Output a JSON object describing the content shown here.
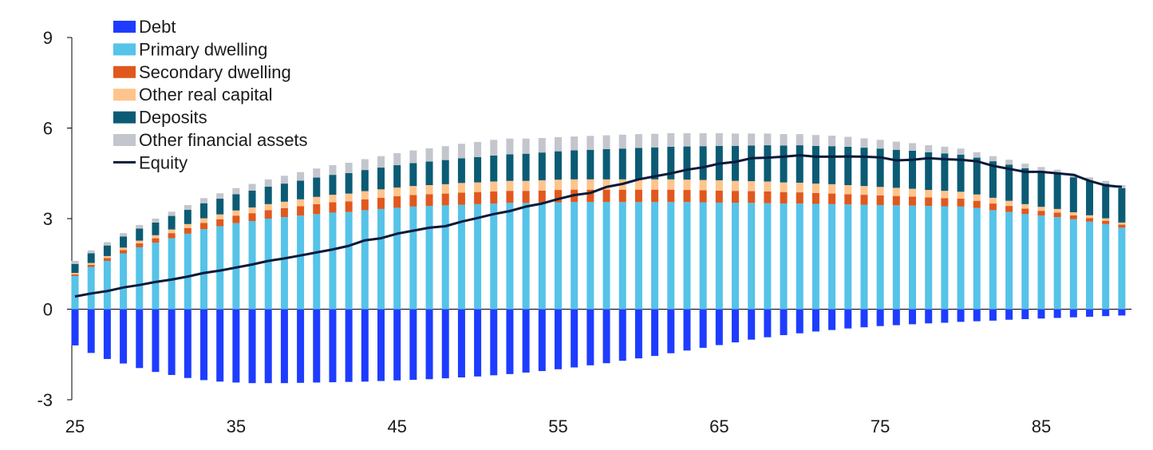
{
  "chart_data": {
    "type": "bar",
    "stacked": true,
    "title": "",
    "xlabel": "",
    "ylabel": "",
    "x": [
      25,
      26,
      27,
      28,
      29,
      30,
      31,
      32,
      33,
      34,
      35,
      36,
      37,
      38,
      39,
      40,
      41,
      42,
      43,
      44,
      45,
      46,
      47,
      48,
      49,
      50,
      51,
      52,
      53,
      54,
      55,
      56,
      57,
      58,
      59,
      60,
      61,
      62,
      63,
      64,
      65,
      66,
      67,
      68,
      69,
      70,
      71,
      72,
      73,
      74,
      75,
      76,
      77,
      78,
      79,
      80,
      81,
      82,
      83,
      84,
      85,
      86,
      87,
      88,
      89,
      90
    ],
    "xticks": [
      "25",
      "35",
      "45",
      "55",
      "65",
      "75",
      "85"
    ],
    "yticks": [
      "-3",
      "0",
      "3",
      "6",
      "9"
    ],
    "ylim": [
      -3,
      9
    ],
    "xlim": [
      24.8,
      90.6
    ],
    "legend_position": "top-left",
    "series": [
      {
        "name": "Debt",
        "color": "#1e3cff",
        "values": [
          -1.2,
          -1.45,
          -1.65,
          -1.8,
          -1.95,
          -2.08,
          -2.18,
          -2.28,
          -2.35,
          -2.4,
          -2.43,
          -2.45,
          -2.45,
          -2.45,
          -2.44,
          -2.43,
          -2.42,
          -2.41,
          -2.4,
          -2.38,
          -2.36,
          -2.34,
          -2.32,
          -2.29,
          -2.26,
          -2.23,
          -2.19,
          -2.15,
          -2.1,
          -2.05,
          -1.99,
          -1.93,
          -1.86,
          -1.79,
          -1.71,
          -1.63,
          -1.55,
          -1.46,
          -1.37,
          -1.28,
          -1.19,
          -1.1,
          -1.01,
          -0.93,
          -0.86,
          -0.8,
          -0.74,
          -0.69,
          -0.64,
          -0.6,
          -0.56,
          -0.53,
          -0.5,
          -0.47,
          -0.45,
          -0.42,
          -0.4,
          -0.38,
          -0.35,
          -0.33,
          -0.31,
          -0.29,
          -0.27,
          -0.25,
          -0.23,
          -0.21
        ]
      },
      {
        "name": "Primary dwelling",
        "color": "#56c3e8",
        "values": [
          1.1,
          1.4,
          1.6,
          1.85,
          2.05,
          2.2,
          2.35,
          2.5,
          2.65,
          2.75,
          2.85,
          2.92,
          3.0,
          3.05,
          3.1,
          3.15,
          3.2,
          3.22,
          3.28,
          3.32,
          3.36,
          3.4,
          3.42,
          3.44,
          3.46,
          3.48,
          3.5,
          3.52,
          3.52,
          3.53,
          3.54,
          3.55,
          3.55,
          3.55,
          3.55,
          3.55,
          3.55,
          3.55,
          3.55,
          3.54,
          3.53,
          3.52,
          3.52,
          3.51,
          3.5,
          3.5,
          3.49,
          3.48,
          3.47,
          3.46,
          3.45,
          3.44,
          3.43,
          3.42,
          3.41,
          3.4,
          3.35,
          3.28,
          3.22,
          3.15,
          3.1,
          3.05,
          2.98,
          2.9,
          2.82,
          2.7
        ]
      },
      {
        "name": "Secondary dwelling",
        "color": "#e0581e",
        "values": [
          0.05,
          0.07,
          0.09,
          0.11,
          0.13,
          0.15,
          0.17,
          0.19,
          0.21,
          0.23,
          0.25,
          0.26,
          0.28,
          0.3,
          0.31,
          0.33,
          0.34,
          0.35,
          0.36,
          0.37,
          0.38,
          0.38,
          0.39,
          0.39,
          0.4,
          0.4,
          0.4,
          0.4,
          0.4,
          0.4,
          0.41,
          0.41,
          0.41,
          0.41,
          0.41,
          0.41,
          0.41,
          0.41,
          0.4,
          0.4,
          0.4,
          0.4,
          0.39,
          0.39,
          0.38,
          0.37,
          0.36,
          0.35,
          0.34,
          0.33,
          0.32,
          0.31,
          0.3,
          0.28,
          0.27,
          0.26,
          0.24,
          0.22,
          0.2,
          0.18,
          0.16,
          0.15,
          0.13,
          0.12,
          0.11,
          0.1
        ]
      },
      {
        "name": "Other real capital",
        "color": "#ffc48c",
        "values": [
          0.05,
          0.06,
          0.07,
          0.08,
          0.09,
          0.1,
          0.12,
          0.13,
          0.15,
          0.16,
          0.17,
          0.19,
          0.2,
          0.21,
          0.23,
          0.24,
          0.25,
          0.26,
          0.27,
          0.28,
          0.29,
          0.3,
          0.3,
          0.31,
          0.32,
          0.32,
          0.33,
          0.33,
          0.33,
          0.34,
          0.34,
          0.34,
          0.34,
          0.34,
          0.34,
          0.34,
          0.34,
          0.34,
          0.34,
          0.34,
          0.34,
          0.33,
          0.33,
          0.33,
          0.32,
          0.32,
          0.31,
          0.31,
          0.3,
          0.29,
          0.28,
          0.27,
          0.26,
          0.25,
          0.24,
          0.23,
          0.21,
          0.19,
          0.17,
          0.15,
          0.13,
          0.12,
          0.1,
          0.09,
          0.08,
          0.07
        ]
      },
      {
        "name": "Deposits",
        "color": "#0b5b75",
        "values": [
          0.3,
          0.32,
          0.35,
          0.37,
          0.4,
          0.42,
          0.45,
          0.47,
          0.5,
          0.52,
          0.54,
          0.56,
          0.58,
          0.6,
          0.62,
          0.64,
          0.66,
          0.68,
          0.7,
          0.72,
          0.74,
          0.76,
          0.78,
          0.8,
          0.82,
          0.84,
          0.86,
          0.88,
          0.9,
          0.92,
          0.94,
          0.96,
          0.98,
          1.0,
          1.02,
          1.04,
          1.06,
          1.08,
          1.1,
          1.12,
          1.14,
          1.16,
          1.18,
          1.2,
          1.22,
          1.24,
          1.25,
          1.26,
          1.27,
          1.27,
          1.27,
          1.26,
          1.26,
          1.25,
          1.24,
          1.23,
          1.22,
          1.21,
          1.2,
          1.19,
          1.18,
          1.17,
          1.16,
          1.15,
          1.14,
          1.14
        ]
      },
      {
        "name": "Other financial assets",
        "color": "#c3c6cc",
        "values": [
          0.1,
          0.1,
          0.11,
          0.11,
          0.12,
          0.13,
          0.14,
          0.16,
          0.17,
          0.18,
          0.2,
          0.22,
          0.24,
          0.26,
          0.28,
          0.3,
          0.32,
          0.34,
          0.36,
          0.38,
          0.4,
          0.42,
          0.44,
          0.46,
          0.48,
          0.5,
          0.52,
          0.52,
          0.5,
          0.48,
          0.47,
          0.46,
          0.46,
          0.46,
          0.46,
          0.46,
          0.45,
          0.45,
          0.44,
          0.43,
          0.42,
          0.41,
          0.4,
          0.39,
          0.38,
          0.37,
          0.36,
          0.35,
          0.33,
          0.31,
          0.29,
          0.27,
          0.25,
          0.23,
          0.22,
          0.2,
          0.18,
          0.17,
          0.16,
          0.15,
          0.14,
          0.13,
          0.12,
          0.11,
          0.1,
          0.1
        ]
      }
    ],
    "line": {
      "name": "Equity",
      "color": "#0a1a3a",
      "values": [
        0.42,
        0.52,
        0.6,
        0.72,
        0.8,
        0.9,
        0.98,
        1.08,
        1.2,
        1.28,
        1.38,
        1.48,
        1.6,
        1.68,
        1.78,
        1.88,
        1.98,
        2.1,
        2.28,
        2.35,
        2.5,
        2.6,
        2.7,
        2.75,
        2.9,
        3.02,
        3.15,
        3.25,
        3.4,
        3.5,
        3.65,
        3.78,
        3.85,
        4.05,
        4.15,
        4.3,
        4.4,
        4.5,
        4.62,
        4.7,
        4.82,
        4.88,
        5.0,
        5.02,
        5.05,
        5.1,
        5.05,
        5.05,
        5.06,
        5.05,
        5.03,
        4.93,
        4.95,
        5.0,
        4.97,
        4.95,
        4.9,
        4.75,
        4.65,
        4.55,
        4.55,
        4.5,
        4.45,
        4.25,
        4.1,
        4.05
      ]
    }
  }
}
